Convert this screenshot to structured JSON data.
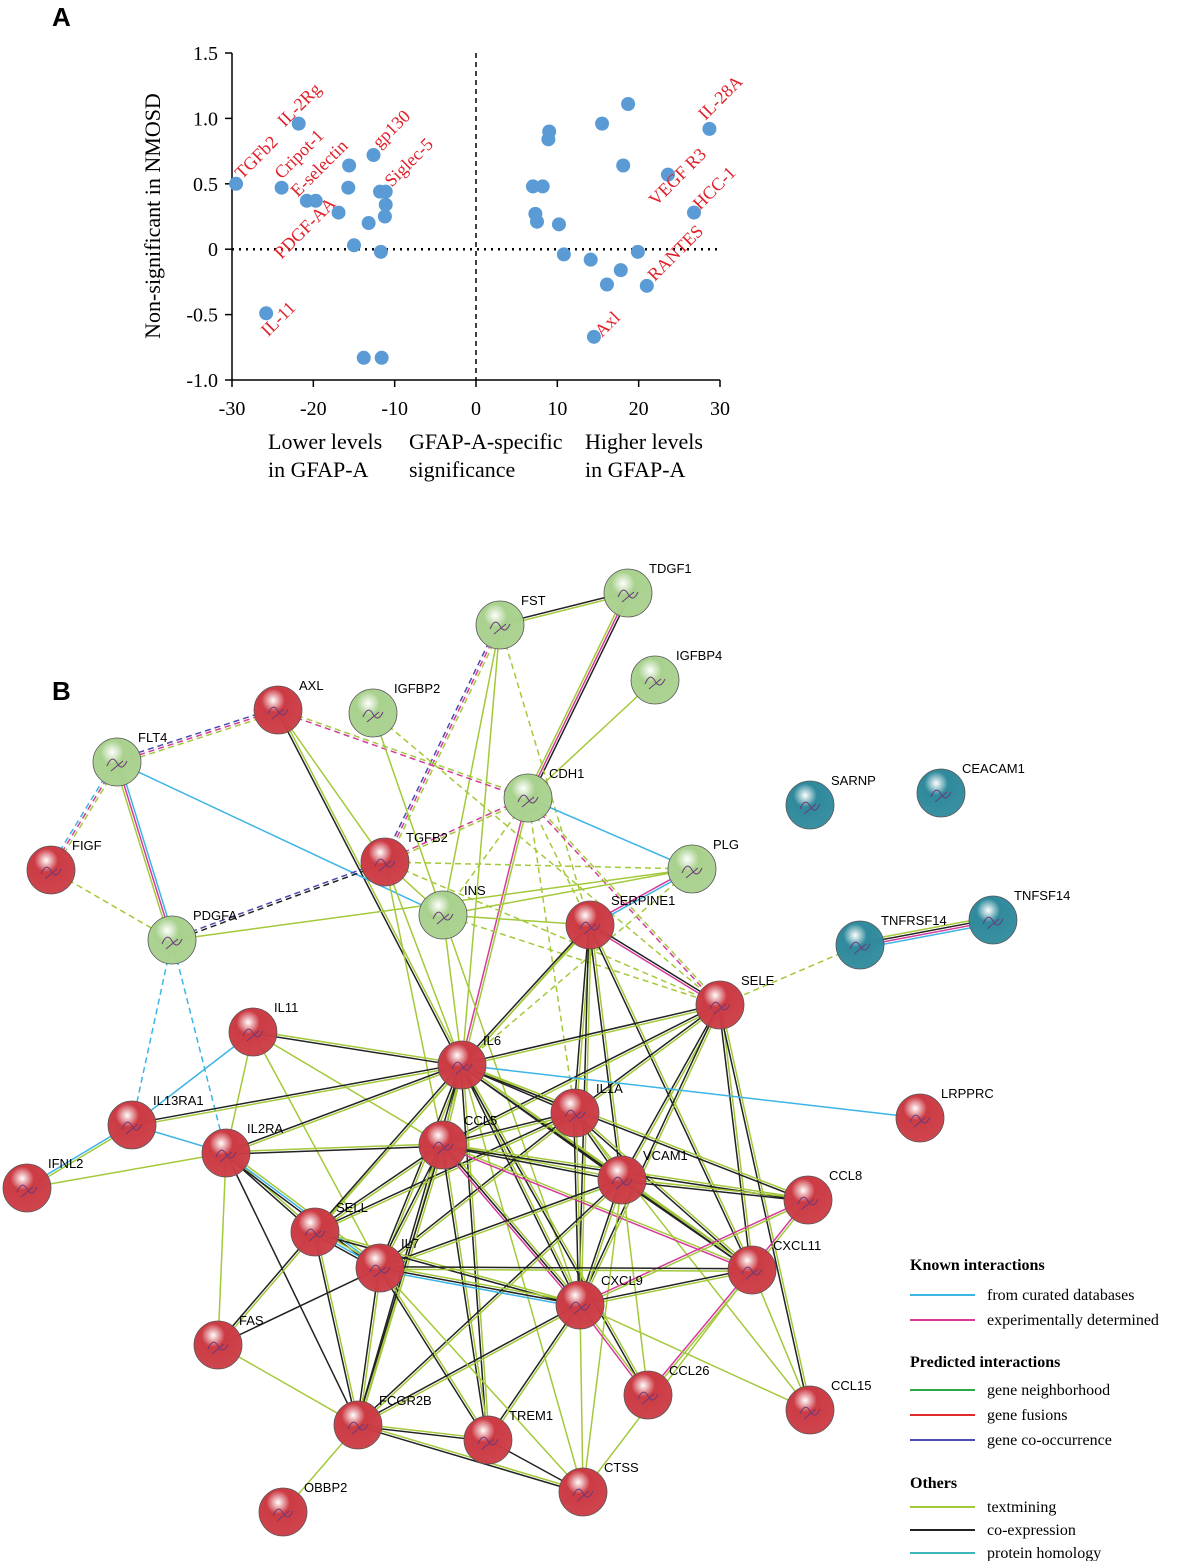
{
  "chart_data": {
    "type": "scatter",
    "panel_label": "A",
    "y_label": "Non-significant in NMOSD",
    "x_annotations": [
      [
        "Lower levels",
        "in GFAP-A"
      ],
      [
        "GFAP-A-specific",
        "significance"
      ],
      [
        "Higher levels",
        "in GFAP-A"
      ]
    ],
    "x": [
      -29.5,
      -21.8,
      -23.9,
      -20.8,
      -19.7,
      -15.6,
      -15.7,
      -16.9,
      -12.6,
      -11.8,
      -11.1,
      -11.1,
      -11.2,
      -13.2,
      -15,
      -11.7,
      -25.8,
      -13.8,
      -11.6,
      18.7,
      15.5,
      9,
      8.9,
      28.7,
      18.1,
      7,
      8.2,
      7.3,
      7.5,
      10.2,
      23.6,
      26.8,
      10.8,
      14.1,
      19.9,
      17.8,
      16.1,
      21,
      14.5
    ],
    "y": [
      0.5,
      0.96,
      0.47,
      0.37,
      0.37,
      0.64,
      0.47,
      0.28,
      0.72,
      0.44,
      0.44,
      0.34,
      0.25,
      0.2,
      0.03,
      -0.02,
      -0.49,
      -0.83,
      -0.83,
      1.11,
      0.96,
      0.9,
      0.84,
      0.92,
      0.64,
      0.48,
      0.48,
      0.27,
      0.21,
      0.19,
      0.57,
      0.28,
      -0.04,
      -0.08,
      -0.02,
      -0.16,
      -0.27,
      -0.28,
      -0.67
    ],
    "point_labels": [
      "TGFb2",
      "IL-2Rg",
      "Cripot-1",
      "E-selectin",
      null,
      null,
      null,
      "PDGF-AA",
      "gp130",
      null,
      "Siglec-5",
      null,
      null,
      null,
      null,
      null,
      "IL-11",
      null,
      null,
      null,
      null,
      null,
      null,
      "IL-28A",
      null,
      null,
      null,
      null,
      null,
      null,
      "VEGF R3",
      "HCC-1",
      null,
      null,
      null,
      null,
      null,
      "RANTES",
      "Axl"
    ],
    "color": "#5b9bd5",
    "label_color": "#e0202a",
    "xlim": [
      -30,
      30
    ],
    "xticks": [
      -30,
      -20,
      -10,
      0,
      10,
      20,
      30
    ],
    "ylim": [
      -1,
      1.5
    ],
    "yticks": [
      {
        "value": -1,
        "label": "-1.0"
      },
      -0.5,
      0,
      0.5,
      {
        "value": 1,
        "label": "1.0"
      },
      1.5
    ]
  },
  "network": {
    "panel_label": "B",
    "nodes": [
      {
        "label": "TDGF1",
        "color": "#a9d18e"
      },
      {
        "label": "FST",
        "color": "#a9d18e"
      },
      {
        "label": "IGFBP4",
        "color": "#a9d18e"
      },
      {
        "label": "AXL",
        "color": "#cc3b44"
      },
      {
        "label": "IGFBP2",
        "color": "#a9d18e"
      },
      {
        "label": "FLT4",
        "color": "#a9d18e"
      },
      {
        "label": "CDH1",
        "color": "#a9d18e"
      },
      {
        "label": "SARNP",
        "color": "#2f8a9c"
      },
      {
        "label": "CEACAM1",
        "color": "#2f8a9c"
      },
      {
        "label": "FIGF",
        "color": "#cc3b44"
      },
      {
        "label": "TGFB2",
        "color": "#cc3b44"
      },
      {
        "label": "PLG",
        "color": "#a9d18e"
      },
      {
        "label": "INS",
        "color": "#a9d18e"
      },
      {
        "label": "SERPINE1",
        "color": "#cc3b44"
      },
      {
        "label": "PDGFA",
        "color": "#a9d18e"
      },
      {
        "label": "TNFRSF14",
        "color": "#2f8a9c"
      },
      {
        "label": "TNFSF14",
        "color": "#2f8a9c"
      },
      {
        "label": "SELE",
        "color": "#cc3b44"
      },
      {
        "label": "IL11",
        "color": "#cc3b44"
      },
      {
        "label": "IL6",
        "color": "#cc3b44"
      },
      {
        "label": "LRPPRC",
        "color": "#cc3b44"
      },
      {
        "label": "IL1A",
        "color": "#cc3b44"
      },
      {
        "label": "IL13RA1",
        "color": "#cc3b44"
      },
      {
        "label": "CCL5",
        "color": "#cc3b44"
      },
      {
        "label": "IL2RA",
        "color": "#cc3b44"
      },
      {
        "label": "IFNL2",
        "color": "#cc3b44"
      },
      {
        "label": "VCAM1",
        "color": "#cc3b44"
      },
      {
        "label": "CCL8",
        "color": "#cc3b44"
      },
      {
        "label": "SELL",
        "color": "#cc3b44"
      },
      {
        "label": "CXCL11",
        "color": "#cc3b44"
      },
      {
        "label": "IL7",
        "color": "#cc3b44"
      },
      {
        "label": "CXCL9",
        "color": "#cc3b44"
      },
      {
        "label": "FAS",
        "color": "#cc3b44"
      },
      {
        "label": "CCL26",
        "color": "#cc3b44"
      },
      {
        "label": "CCL15",
        "color": "#cc3b44"
      },
      {
        "label": "FCGR2B",
        "color": "#cc3b44"
      },
      {
        "label": "TREM1",
        "color": "#cc3b44"
      },
      {
        "label": "CTSS",
        "color": "#cc3b44"
      },
      {
        "label": "OBBP2",
        "color": "#cc3b44"
      }
    ],
    "legend": [
      {
        "title": "Known interactions",
        "items": [
          {
            "label": "from curated databases",
            "color": "#3cb4e6"
          },
          {
            "label": "experimentally determined",
            "color": "#d63a9a"
          }
        ]
      },
      {
        "title": "Predicted interactions",
        "items": [
          {
            "label": "gene neighborhood",
            "color": "#2aa84a"
          },
          {
            "label": "gene fusions",
            "color": "#e12b2b"
          },
          {
            "label": "gene co-occurrence",
            "color": "#4b4bb0"
          }
        ]
      },
      {
        "title": "Others",
        "items": [
          {
            "label": "textmining",
            "color": "#a3c93a"
          },
          {
            "label": "co-expression",
            "color": "#222222"
          },
          {
            "label": "protein homology",
            "color": "#3db7b8"
          }
        ]
      }
    ]
  }
}
